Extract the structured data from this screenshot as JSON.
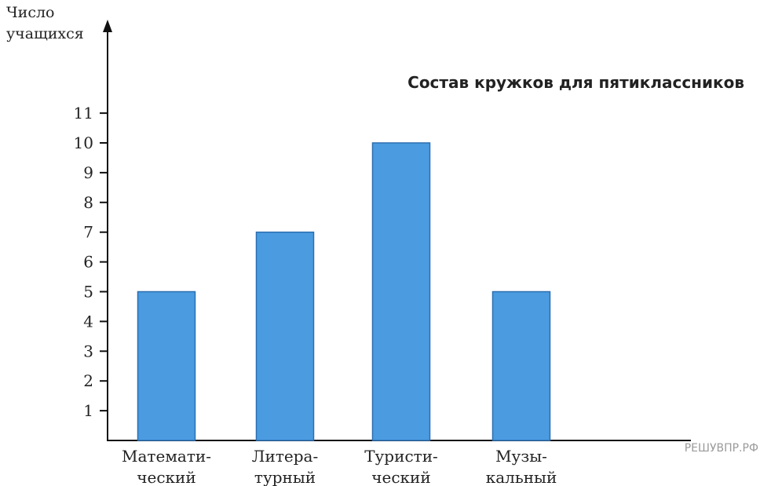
{
  "chart_data": {
    "type": "bar",
    "title": "Состав кружков для пятиклассников",
    "ylabel_lines": [
      "Число",
      "учащихся"
    ],
    "xlabel": "",
    "categories": [
      [
        "Математи-",
        "ческий"
      ],
      [
        "Литера-",
        "турный"
      ],
      [
        "Туристи-",
        "ческий"
      ],
      [
        "Музы-",
        "кальный"
      ]
    ],
    "values": [
      5,
      7,
      10,
      5
    ],
    "yticks": [
      1,
      2,
      3,
      4,
      5,
      6,
      7,
      8,
      9,
      10,
      11
    ],
    "ylim": [
      0,
      11
    ],
    "grid": false,
    "bar_color": "#4a9be0",
    "bar_edge_color": "#2c6fb0"
  },
  "watermark": "РЕШУВПР.РФ"
}
